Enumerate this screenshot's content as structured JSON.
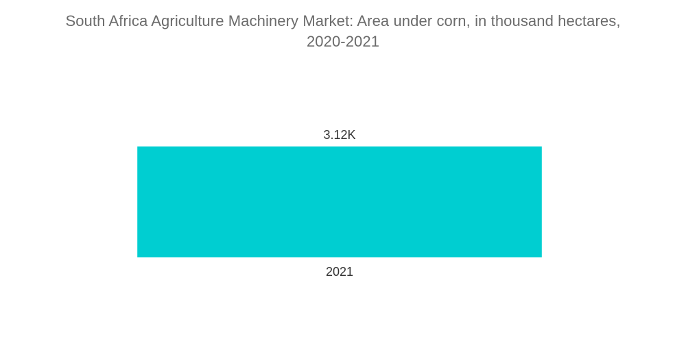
{
  "chart_data": {
    "type": "bar",
    "title_lines": [
      "South Africa Agriculture Machinery Market: Area under corn, in thousand hectares,",
      "2020-2021"
    ],
    "categories": [
      "2021"
    ],
    "values": [
      3120
    ],
    "data_labels": [
      "3.12K"
    ],
    "xlabel": "",
    "ylabel": "",
    "grid": false,
    "legend": "none",
    "bar_color": "#00ced1"
  }
}
